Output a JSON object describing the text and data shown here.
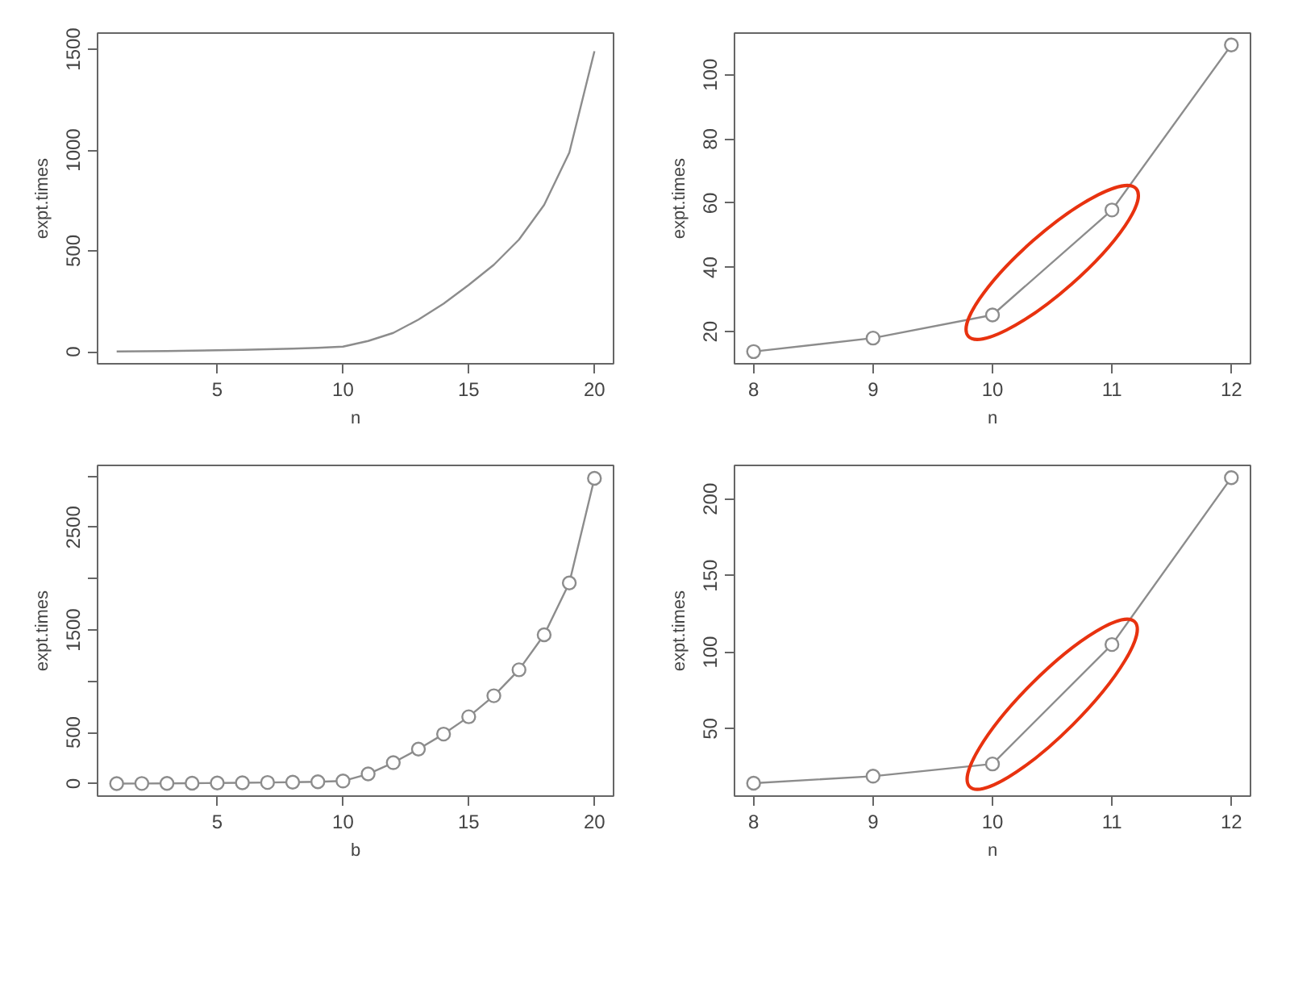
{
  "chart_data": [
    {
      "type": "line",
      "xlabel": "n",
      "ylabel": "expt.times",
      "x": [
        1,
        2,
        3,
        4,
        5,
        6,
        7,
        8,
        9,
        10,
        11,
        12,
        13,
        14,
        15,
        16,
        17,
        18,
        19,
        20
      ],
      "series": [
        {
          "color": "#8c8c8c",
          "values": [
            1,
            2,
            3,
            5,
            7,
            9,
            12,
            15,
            19,
            25,
            53,
            93,
            159,
            238,
            331,
            431,
            556,
            728,
            987,
            1490
          ]
        }
      ],
      "xlim": [
        0.24,
        20.76
      ],
      "ylim": [
        -60,
        1580
      ],
      "xticks": [
        5,
        10,
        15,
        20
      ],
      "yticks": [
        0,
        500,
        1000,
        1500
      ],
      "marker": "none",
      "grid": false
    },
    {
      "type": "line",
      "xlabel": "n",
      "ylabel": "expt.times",
      "x": [
        8,
        9,
        10,
        11,
        12
      ],
      "series": [
        {
          "color": "#8c8c8c",
          "values": [
            13.8,
            18,
            25.2,
            57.9,
            109.3
          ]
        }
      ],
      "xlim": [
        7.84,
        12.16
      ],
      "ylim": [
        10,
        113
      ],
      "xticks": [
        8,
        9,
        10,
        11,
        12
      ],
      "yticks": [
        20,
        40,
        60,
        80,
        100
      ],
      "marker": "circle",
      "grid": false
    },
    {
      "type": "line",
      "xlabel": "b",
      "ylabel": "expt.times",
      "x": [
        1,
        2,
        3,
        4,
        5,
        6,
        7,
        8,
        9,
        10,
        11,
        12,
        13,
        14,
        15,
        16,
        17,
        18,
        19,
        20
      ],
      "series": [
        {
          "color": "#8c8c8c",
          "values": [
            1,
            2,
            3,
            5,
            7,
            9,
            12,
            15,
            19,
            26,
            95,
            205,
            337,
            484,
            653,
            858,
            1111,
            1453,
            1958,
            2979
          ]
        }
      ],
      "xlim": [
        0.24,
        20.76
      ],
      "ylim": [
        -121,
        3105
      ],
      "xticks": [
        5,
        10,
        15,
        20
      ],
      "yticks": [
        0,
        500,
        {
          "value": 1000,
          "label": null
        },
        1500,
        {
          "value": 2000,
          "label": null
        },
        2500,
        {
          "value": 3000,
          "label": null
        }
      ],
      "marker": "circle",
      "grid": false
    },
    {
      "type": "line",
      "xlabel": "n",
      "ylabel": "expt.times",
      "x": [
        8,
        9,
        10,
        11,
        12
      ],
      "series": [
        {
          "color": "#8c8c8c",
          "values": [
            14.4,
            19,
            27,
            105,
            214
          ]
        }
      ],
      "xlim": [
        7.84,
        12.16
      ],
      "ylim": [
        6,
        222
      ],
      "xticks": [
        8,
        9,
        10,
        11,
        12
      ],
      "yticks": [
        50,
        100,
        150,
        200
      ],
      "marker": "circle",
      "grid": false
    }
  ]
}
